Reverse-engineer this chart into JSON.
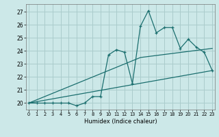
{
  "title": "",
  "xlabel": "Humidex (Indice chaleur)",
  "bg_color": "#cce8e8",
  "grid_color": "#aacccc",
  "line_color": "#1a6e6e",
  "x_ticks": [
    0,
    1,
    2,
    3,
    4,
    5,
    6,
    7,
    8,
    9,
    10,
    11,
    12,
    13,
    14,
    15,
    16,
    17,
    18,
    19,
    20,
    21,
    22,
    23
  ],
  "y_ticks": [
    20,
    21,
    22,
    23,
    24,
    25,
    26,
    27
  ],
  "xlim": [
    -0.3,
    23.3
  ],
  "ylim": [
    19.5,
    27.6
  ],
  "main_x": [
    0,
    1,
    2,
    3,
    4,
    5,
    6,
    7,
    8,
    9,
    10,
    11,
    12,
    13,
    14,
    15,
    16,
    17,
    18,
    19,
    20,
    21,
    22,
    23
  ],
  "main_y": [
    20.0,
    20.0,
    20.0,
    20.0,
    20.0,
    20.0,
    19.8,
    20.0,
    20.5,
    20.5,
    23.7,
    24.1,
    23.9,
    21.5,
    25.9,
    27.1,
    25.4,
    25.8,
    25.8,
    24.2,
    24.9,
    24.3,
    23.9,
    22.5
  ],
  "line2_x": [
    0,
    23
  ],
  "line2_y": [
    20.0,
    22.5
  ],
  "line3_x": [
    0,
    14,
    23
  ],
  "line3_y": [
    20.0,
    23.5,
    24.2
  ]
}
